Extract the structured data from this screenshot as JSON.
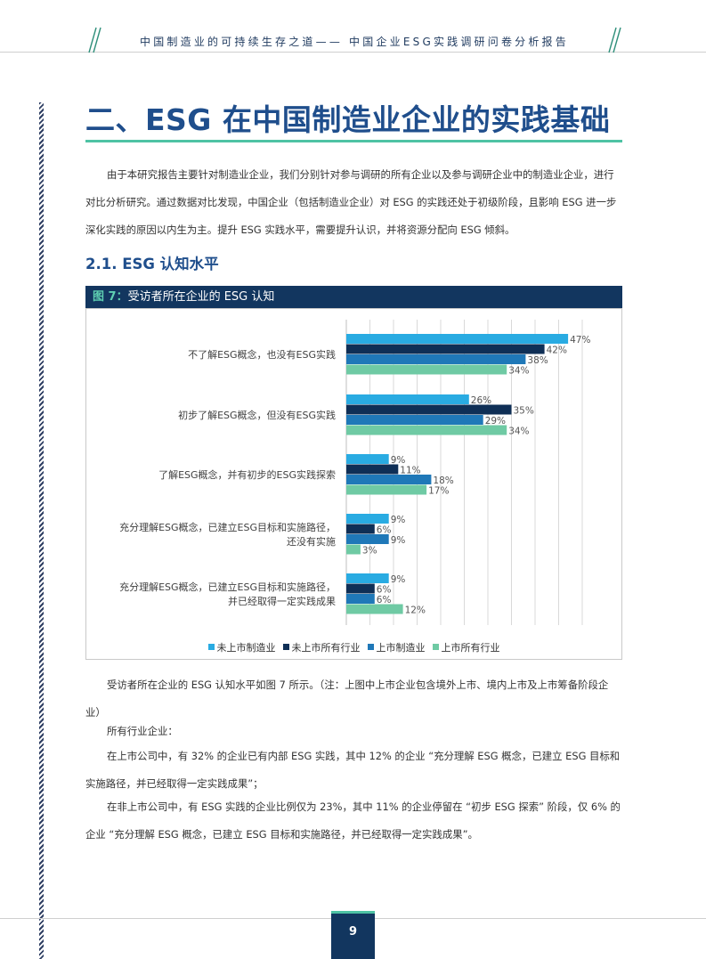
{
  "header": {
    "running_title": "中国制造业的可持续生存之道—— 中国企业ESG实践调研问卷分析报告"
  },
  "page": {
    "chapter_title": "二、ESG 在中国制造业企业的实践基础",
    "intro_paragraph": "由于本研究报告主要针对制造业企业，我们分别针对参与调研的所有企业以及参与调研企业中的制造业企业，进行对比分析研究。通过数据对比发现，中国企业（包括制造业企业）对 ESG 的实践还处于初级阶段，且影响 ESG 进一步深化实践的原因以内生为主。提升 ESG 实践水平，需要提升认识，并将资源分配向 ESG 倾斜。",
    "section_title": "2.1. ESG 认知水平",
    "figure_number": "图 7：",
    "figure_title": "受访者所在企业的 ESG 认知",
    "para_after_chart": "受访者所在企业的 ESG 认知水平如图 7 所示。（注：上图中上市企业包含境外上市、境内上市及上市筹备阶段企业）",
    "para_all_industries": "所有行业企业：",
    "para_listed": "在上市公司中，有 32% 的企业已有内部 ESG 实践，其中 12% 的企业 “充分理解 ESG 概念，已建立 ESG 目标和实施路径，并已经取得一定实践成果”；",
    "para_unlisted": "在非上市公司中，有 ESG 实践的企业比例仅为 23%，其中 11% 的企业停留在 “初步 ESG 探索” 阶段，仅 6% 的企业 “充分理解 ESG 概念，已建立 ESG 目标和实施路径，并已经取得一定实践成果”。",
    "page_number": "9"
  },
  "colors": {
    "brand_blue": "#1f4e8c",
    "dark_navy": "#12365f",
    "teal": "#4ec3a4"
  },
  "chart_data": {
    "type": "bar",
    "orientation": "horizontal",
    "categories": [
      [
        "不了解ESG概念，也没有ESG实践"
      ],
      [
        "初步了解ESG概念，但没有ESG实践"
      ],
      [
        "了解ESG概念，并有初步的ESG实践探索"
      ],
      [
        "充分理解ESG概念，已建立ESG目标和实施路径，",
        "还没有实施"
      ],
      [
        "充分理解ESG概念，已建立ESG目标和实施路径，",
        "并已经取得一定实践成果"
      ]
    ],
    "series": [
      {
        "name": "未上市制造业",
        "color": "#29abe2",
        "values": [
          47,
          26,
          9,
          9,
          9
        ]
      },
      {
        "name": "未上市所有行业",
        "color": "#0f2f56",
        "values": [
          42,
          35,
          11,
          6,
          6
        ]
      },
      {
        "name": "上市制造业",
        "color": "#1f78b8",
        "values": [
          38,
          29,
          18,
          9,
          6
        ]
      },
      {
        "name": "上市所有行业",
        "color": "#6fcaa4",
        "values": [
          34,
          34,
          17,
          3,
          12
        ]
      }
    ],
    "value_suffix": "%",
    "xlim": [
      0,
      50
    ],
    "grid": true,
    "legend_position": "bottom"
  }
}
